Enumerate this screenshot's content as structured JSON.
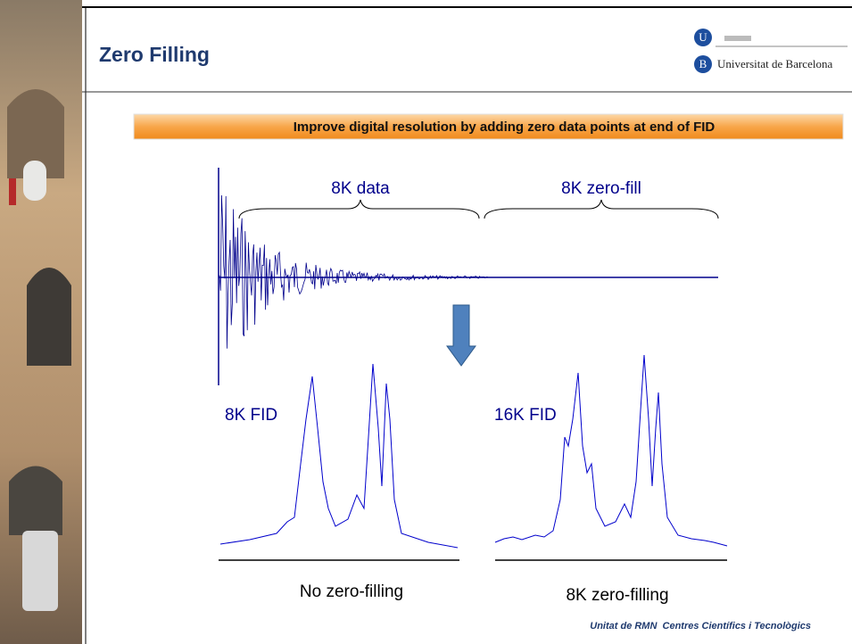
{
  "header": {
    "title": "Zero Filling",
    "logo": {
      "letter_top": "U",
      "letter_bottom": "B",
      "name": "Universitat de Barcelona"
    }
  },
  "banner": "Improve digital resolution by adding zero data points at end of FID",
  "fid": {
    "data_label": "8K data",
    "zero_fill_label": "8K zero-fill"
  },
  "spectra": [
    {
      "label": "8K FID",
      "caption": "No zero-filling"
    },
    {
      "label": "16K FID",
      "caption": "8K zero-filling"
    }
  ],
  "footer": "Unitat de RMN  Centres Científics i Tecnològics"
}
